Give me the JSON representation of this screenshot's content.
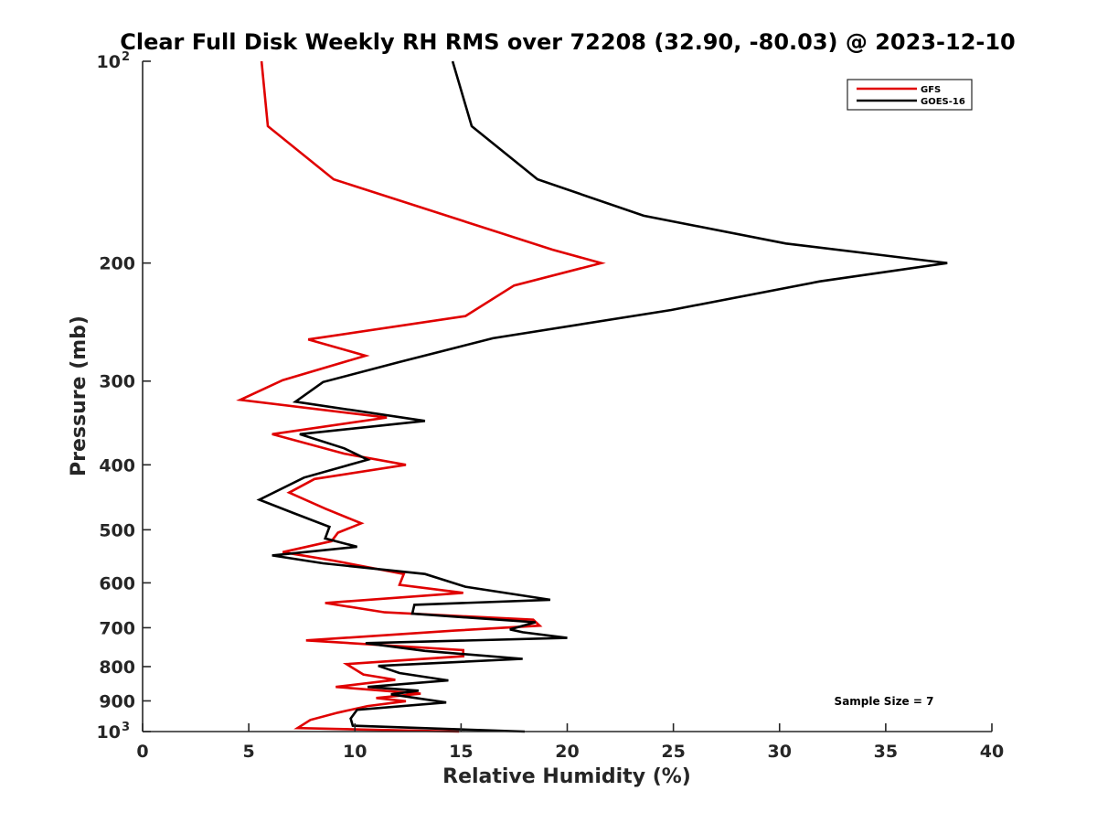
{
  "chart_data": {
    "type": "line",
    "title": "Clear Full Disk Weekly RH RMS over 72208 (32.90, -80.03) @ 2023-12-10",
    "xlabel": "Relative Humidity (%)",
    "ylabel": "Pressure (mb)",
    "xlim": [
      0,
      40
    ],
    "ylim": [
      100,
      1000
    ],
    "y_scale": "log",
    "y_reversed": true,
    "x_ticks": [
      0,
      5,
      10,
      15,
      20,
      25,
      30,
      35,
      40
    ],
    "y_ticks": [
      {
        "value": 100,
        "label": "10",
        "sup": "2"
      },
      {
        "value": 200,
        "label": "200",
        "sup": ""
      },
      {
        "value": 300,
        "label": "300",
        "sup": ""
      },
      {
        "value": 400,
        "label": "400",
        "sup": ""
      },
      {
        "value": 500,
        "label": "500",
        "sup": ""
      },
      {
        "value": 600,
        "label": "600",
        "sup": ""
      },
      {
        "value": 700,
        "label": "700",
        "sup": ""
      },
      {
        "value": 800,
        "label": "800",
        "sup": ""
      },
      {
        "value": 900,
        "label": "900",
        "sup": ""
      },
      {
        "value": 1000,
        "label": "10",
        "sup": "3"
      }
    ],
    "grid": false,
    "legend_position": "top-right",
    "annotation": "Sample Size = 7",
    "series": [
      {
        "name": "GFS",
        "color": "#e00000",
        "points": [
          [
            5.6,
            100
          ],
          [
            5.9,
            125
          ],
          [
            9.0,
            150
          ],
          [
            19.3,
            191
          ],
          [
            21.6,
            200
          ],
          [
            17.5,
            216
          ],
          [
            15.2,
            240
          ],
          [
            7.8,
            260
          ],
          [
            10.5,
            275
          ],
          [
            6.6,
            299
          ],
          [
            4.6,
            320
          ],
          [
            11.5,
            340
          ],
          [
            6.1,
            360
          ],
          [
            9.5,
            385
          ],
          [
            12.4,
            400
          ],
          [
            8.1,
            420
          ],
          [
            6.9,
            440
          ],
          [
            8.6,
            465
          ],
          [
            10.3,
            489
          ],
          [
            9.2,
            505
          ],
          [
            8.9,
            520
          ],
          [
            6.6,
            540
          ],
          [
            9.0,
            556
          ],
          [
            12.3,
            582
          ],
          [
            12.1,
            604
          ],
          [
            15.1,
            621
          ],
          [
            8.6,
            643
          ],
          [
            11.4,
            664
          ],
          [
            18.4,
            681
          ],
          [
            18.7,
            695
          ],
          [
            14.7,
            707
          ],
          [
            7.7,
            731
          ],
          [
            15.1,
            756
          ],
          [
            15.1,
            772
          ],
          [
            9.6,
            793
          ],
          [
            10.4,
            822
          ],
          [
            11.9,
            837
          ],
          [
            9.1,
            858
          ],
          [
            13.1,
            878
          ],
          [
            11.0,
            891
          ],
          [
            12.4,
            901
          ],
          [
            10.6,
            916
          ],
          [
            9.2,
            937
          ],
          [
            7.9,
            961
          ],
          [
            7.3,
            988
          ],
          [
            14.9,
            1000
          ]
        ]
      },
      {
        "name": "GOES-16",
        "color": "#000000",
        "points": [
          [
            14.6,
            100
          ],
          [
            15.5,
            125
          ],
          [
            18.6,
            150
          ],
          [
            23.6,
            170
          ],
          [
            30.3,
            187
          ],
          [
            37.9,
            200
          ],
          [
            31.9,
            213
          ],
          [
            24.9,
            235
          ],
          [
            16.5,
            259
          ],
          [
            12.1,
            281
          ],
          [
            8.5,
            301
          ],
          [
            7.2,
            322
          ],
          [
            13.3,
            344
          ],
          [
            7.4,
            360
          ],
          [
            9.5,
            378
          ],
          [
            10.6,
            393
          ],
          [
            7.6,
            418
          ],
          [
            5.5,
            451
          ],
          [
            7.1,
            472
          ],
          [
            8.8,
            495
          ],
          [
            8.6,
            515
          ],
          [
            10.1,
            530
          ],
          [
            6.1,
            546
          ],
          [
            8.5,
            561
          ],
          [
            13.3,
            582
          ],
          [
            15.2,
            608
          ],
          [
            19.2,
            636
          ],
          [
            12.8,
            647
          ],
          [
            12.7,
            667
          ],
          [
            18.5,
            687
          ],
          [
            17.3,
            704
          ],
          [
            17.9,
            711
          ],
          [
            20.0,
            725
          ],
          [
            10.5,
            738
          ],
          [
            13.3,
            758
          ],
          [
            17.9,
            779
          ],
          [
            11.1,
            798
          ],
          [
            12.1,
            818
          ],
          [
            14.4,
            839
          ],
          [
            10.6,
            858
          ],
          [
            13.0,
            869
          ],
          [
            11.7,
            880
          ],
          [
            14.3,
            905
          ],
          [
            10.1,
            928
          ],
          [
            9.8,
            956
          ],
          [
            9.9,
            980
          ],
          [
            18.0,
            1000
          ]
        ]
      }
    ]
  }
}
